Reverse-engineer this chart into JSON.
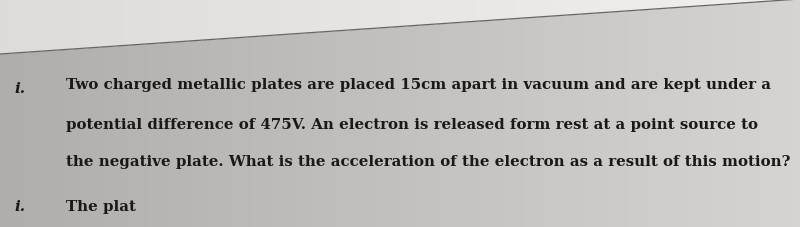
{
  "background_left": "#b0aeac",
  "background_mid": "#c8c6c4",
  "background_right": "#d8d6d4",
  "line_color": "#666666",
  "bullet1_text": "i.",
  "bullet2_text": "i.",
  "line1": "Two charged metallic plates are placed 15cm apart in vacuum and are kept under a",
  "line2": "potential difference of 475V. An electron is released form rest at a point source to",
  "line3": "the negative plate. What is the acceleration of the electron as a result of this motion?",
  "line4": "The plat",
  "text_color": "#1a1818",
  "font_size": 10.8,
  "bullet_fontsize": 11.0
}
